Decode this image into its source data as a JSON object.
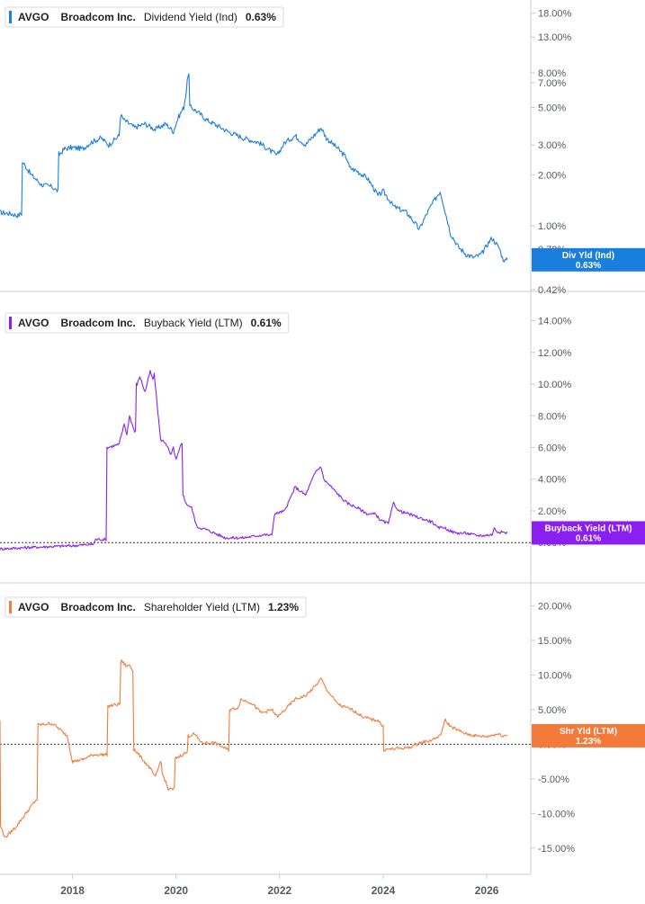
{
  "colors": {
    "dividend": "#1a7fdc",
    "buyback": "#8a1ff0",
    "shareholder": "#f47a3a",
    "axis": "#c8ccd2",
    "tick_text": "#555a60"
  },
  "chart_data": [
    {
      "type": "line",
      "id": "dividend",
      "legend": {
        "ticker": "AVGO",
        "company": "Broadcom Inc.",
        "metric": "Dividend Yield (Ind)",
        "value": "0.63%"
      },
      "tag": {
        "label": "Div Yld (Ind)",
        "value": "0.63%"
      },
      "y_scale": "log",
      "ylim": [
        0.42,
        20
      ],
      "y_ticks": [
        {
          "v": 18,
          "label": "18.00%"
        },
        {
          "v": 13,
          "label": "13.00%"
        },
        {
          "v": 8,
          "label": "8.00%"
        },
        {
          "v": 7,
          "label": "7.00%"
        },
        {
          "v": 5,
          "label": "5.00%"
        },
        {
          "v": 3,
          "label": "3.00%"
        },
        {
          "v": 2,
          "label": "2.00%"
        },
        {
          "v": 1,
          "label": "1.00%"
        },
        {
          "v": 0.73,
          "label": "0.73%"
        },
        {
          "v": 0.42,
          "label": "0.42%"
        }
      ],
      "series": [
        {
          "x": [
            2016.6,
            2016.8,
            2016.95,
            2017.0,
            2017.05,
            2017.2,
            2017.4,
            2017.6,
            2017.72,
            2017.75,
            2017.85,
            2018.0,
            2018.2,
            2018.35,
            2018.55,
            2018.7,
            2018.9,
            2018.93,
            2019.0,
            2019.2,
            2019.4,
            2019.6,
            2019.8,
            2019.95,
            2020.05,
            2020.15,
            2020.2,
            2020.23,
            2020.3,
            2020.6,
            2021.0,
            2021.3,
            2021.6,
            2021.8,
            2021.95,
            2022.1,
            2022.3,
            2022.5,
            2022.7,
            2022.8,
            2022.9,
            2023.1,
            2023.3,
            2023.35,
            2023.5,
            2023.7,
            2023.9,
            2024.0,
            2024.2,
            2024.45,
            2024.7,
            2024.95,
            2025.1,
            2025.2,
            2025.25,
            2025.3,
            2025.45,
            2025.6,
            2025.75,
            2025.9,
            2026.1,
            2026.25,
            2026.3,
            2026.35,
            2026.4
          ],
          "values": [
            1.2,
            1.18,
            1.15,
            1.18,
            2.35,
            2.0,
            1.75,
            1.7,
            1.6,
            2.65,
            2.85,
            2.9,
            2.85,
            3.1,
            3.3,
            3.0,
            3.4,
            4.5,
            4.2,
            3.8,
            4.0,
            3.7,
            4.0,
            3.6,
            4.4,
            5.0,
            6.3,
            7.8,
            5.0,
            4.2,
            3.6,
            3.3,
            3.1,
            2.8,
            2.6,
            3.1,
            3.4,
            3.0,
            3.5,
            3.8,
            3.3,
            2.9,
            2.5,
            2.2,
            2.1,
            1.9,
            1.5,
            1.6,
            1.3,
            1.2,
            0.95,
            1.35,
            1.6,
            1.2,
            1.05,
            0.9,
            0.75,
            0.68,
            0.65,
            0.68,
            0.85,
            0.73,
            0.65,
            0.62,
            0.63
          ]
        }
      ]
    },
    {
      "type": "line",
      "id": "buyback",
      "legend": {
        "ticker": "AVGO",
        "company": "Broadcom Inc.",
        "metric": "Buyback Yield (LTM)",
        "value": "0.61%"
      },
      "tag": {
        "label": "Buyback Yield (LTM)",
        "value": "0.61%"
      },
      "y_scale": "linear",
      "ylim": [
        -0.5,
        14.6
      ],
      "y_ticks": [
        {
          "v": 14,
          "label": "14.00%"
        },
        {
          "v": 12,
          "label": "12.00%"
        },
        {
          "v": 10,
          "label": "10.00%"
        },
        {
          "v": 8,
          "label": "8.00%"
        },
        {
          "v": 6,
          "label": "6.00%"
        },
        {
          "v": 4,
          "label": "4.00%"
        },
        {
          "v": 2,
          "label": "2.00%"
        },
        {
          "v": 0,
          "label": "0.00%"
        }
      ],
      "zero_line": 0,
      "series": [
        {
          "x": [
            2016.6,
            2017.2,
            2018.0,
            2018.4,
            2018.45,
            2018.65,
            2018.68,
            2018.9,
            2019.0,
            2019.05,
            2019.1,
            2019.2,
            2019.25,
            2019.3,
            2019.4,
            2019.5,
            2019.55,
            2019.58,
            2019.7,
            2019.8,
            2019.9,
            2019.95,
            2020.0,
            2020.1,
            2020.15,
            2020.18,
            2020.3,
            2020.4,
            2020.6,
            2020.95,
            2021.3,
            2021.7,
            2021.85,
            2021.9,
            2022.1,
            2022.3,
            2022.5,
            2022.7,
            2022.8,
            2022.85,
            2023.0,
            2023.2,
            2023.3,
            2023.5,
            2023.7,
            2023.85,
            2023.95,
            2024.1,
            2024.2,
            2024.3,
            2024.5,
            2024.75,
            2024.95,
            2025.05,
            2025.15,
            2025.25,
            2025.4,
            2025.6,
            2025.8,
            2025.95,
            2026.1,
            2026.15,
            2026.2,
            2026.3,
            2026.4
          ],
          "values": [
            -0.4,
            -0.3,
            -0.2,
            -0.1,
            0.2,
            0.2,
            6.0,
            6.2,
            7.5,
            6.8,
            8.0,
            7.0,
            10.0,
            10.5,
            9.5,
            10.8,
            10.3,
            10.6,
            6.5,
            6.3,
            5.5,
            6.0,
            5.2,
            6.2,
            3.0,
            2.5,
            2.2,
            1.0,
            0.8,
            0.3,
            0.3,
            0.5,
            0.45,
            1.8,
            2.0,
            3.5,
            3.0,
            4.5,
            4.8,
            4.0,
            3.5,
            2.8,
            2.5,
            2.2,
            1.8,
            1.8,
            1.4,
            1.2,
            2.5,
            2.0,
            1.8,
            1.5,
            1.3,
            0.9,
            1.0,
            0.8,
            0.6,
            0.6,
            0.45,
            0.45,
            0.5,
            0.9,
            0.7,
            0.65,
            0.61
          ]
        }
      ]
    },
    {
      "type": "line",
      "id": "shareholder",
      "legend": {
        "ticker": "AVGO",
        "company": "Broadcom Inc.",
        "metric": "Shareholder Yield (LTM)",
        "value": "1.23%"
      },
      "tag": {
        "label": "Shr Yld (LTM)",
        "value": "1.23%"
      },
      "y_scale": "linear",
      "ylim": [
        -16.2,
        21.5
      ],
      "y_ticks": [
        {
          "v": 20,
          "label": "20.00%"
        },
        {
          "v": 15,
          "label": "15.00%"
        },
        {
          "v": 10,
          "label": "10.00%"
        },
        {
          "v": 5,
          "label": "5.00%"
        },
        {
          "v": 0,
          "label": "0.00%"
        },
        {
          "v": -5,
          "label": "-5.00%"
        },
        {
          "v": -10,
          "label": "-10.00%"
        },
        {
          "v": -15,
          "label": "-15.00%"
        }
      ],
      "zero_line": 0,
      "series": [
        {
          "x": [
            2016.6,
            2016.62,
            2016.7,
            2016.9,
            2017.1,
            2017.3,
            2017.35,
            2017.6,
            2017.65,
            2017.9,
            2018.0,
            2018.2,
            2018.4,
            2018.65,
            2018.7,
            2018.9,
            2018.95,
            2019.05,
            2019.1,
            2019.15,
            2019.2,
            2019.5,
            2019.6,
            2019.7,
            2019.75,
            2019.85,
            2019.95,
            2020.0,
            2020.2,
            2020.25,
            2020.35,
            2020.5,
            2020.75,
            2021.0,
            2021.05,
            2021.2,
            2021.25,
            2021.45,
            2021.65,
            2021.85,
            2021.95,
            2022.0,
            2022.3,
            2022.5,
            2022.7,
            2022.8,
            2022.9,
            2023.1,
            2023.2,
            2023.4,
            2023.6,
            2023.8,
            2023.9,
            2024.0,
            2024.02,
            2024.3,
            2024.5,
            2024.7,
            2024.9,
            2025.1,
            2025.2,
            2025.25,
            2025.3,
            2025.45,
            2025.6,
            2025.8,
            2026.0,
            2026.2,
            2026.3,
            2026.4
          ],
          "values": [
            3.5,
            -12.0,
            -13.5,
            -12.0,
            -10.0,
            -8.0,
            2.8,
            3.0,
            2.8,
            1.2,
            -2.5,
            -2.2,
            -1.5,
            -1.5,
            5.5,
            5.8,
            12.0,
            11.2,
            11.5,
            10.8,
            -0.8,
            -3.5,
            -4.8,
            -2.5,
            -4.5,
            -6.5,
            -6.5,
            -2.0,
            -1.2,
            1.2,
            1.5,
            0.2,
            0.2,
            -0.8,
            5.0,
            5.3,
            6.5,
            6.0,
            4.5,
            5.0,
            4.0,
            4.2,
            6.5,
            7.0,
            8.5,
            9.5,
            8.0,
            6.0,
            5.5,
            5.0,
            4.0,
            3.5,
            3.5,
            2.5,
            -0.8,
            -0.6,
            -0.5,
            0.2,
            0.5,
            1.2,
            3.5,
            3.0,
            2.6,
            2.0,
            1.5,
            1.2,
            1.1,
            1.5,
            1.3,
            1.23
          ]
        }
      ]
    }
  ],
  "x_axis": {
    "xlim": [
      2016.6,
      2026.85
    ],
    "ticks": [
      {
        "v": 2018,
        "label": "2018"
      },
      {
        "v": 2020,
        "label": "2020"
      },
      {
        "v": 2022,
        "label": "2022"
      },
      {
        "v": 2024,
        "label": "2024"
      },
      {
        "v": 2026,
        "label": "2026"
      }
    ]
  }
}
